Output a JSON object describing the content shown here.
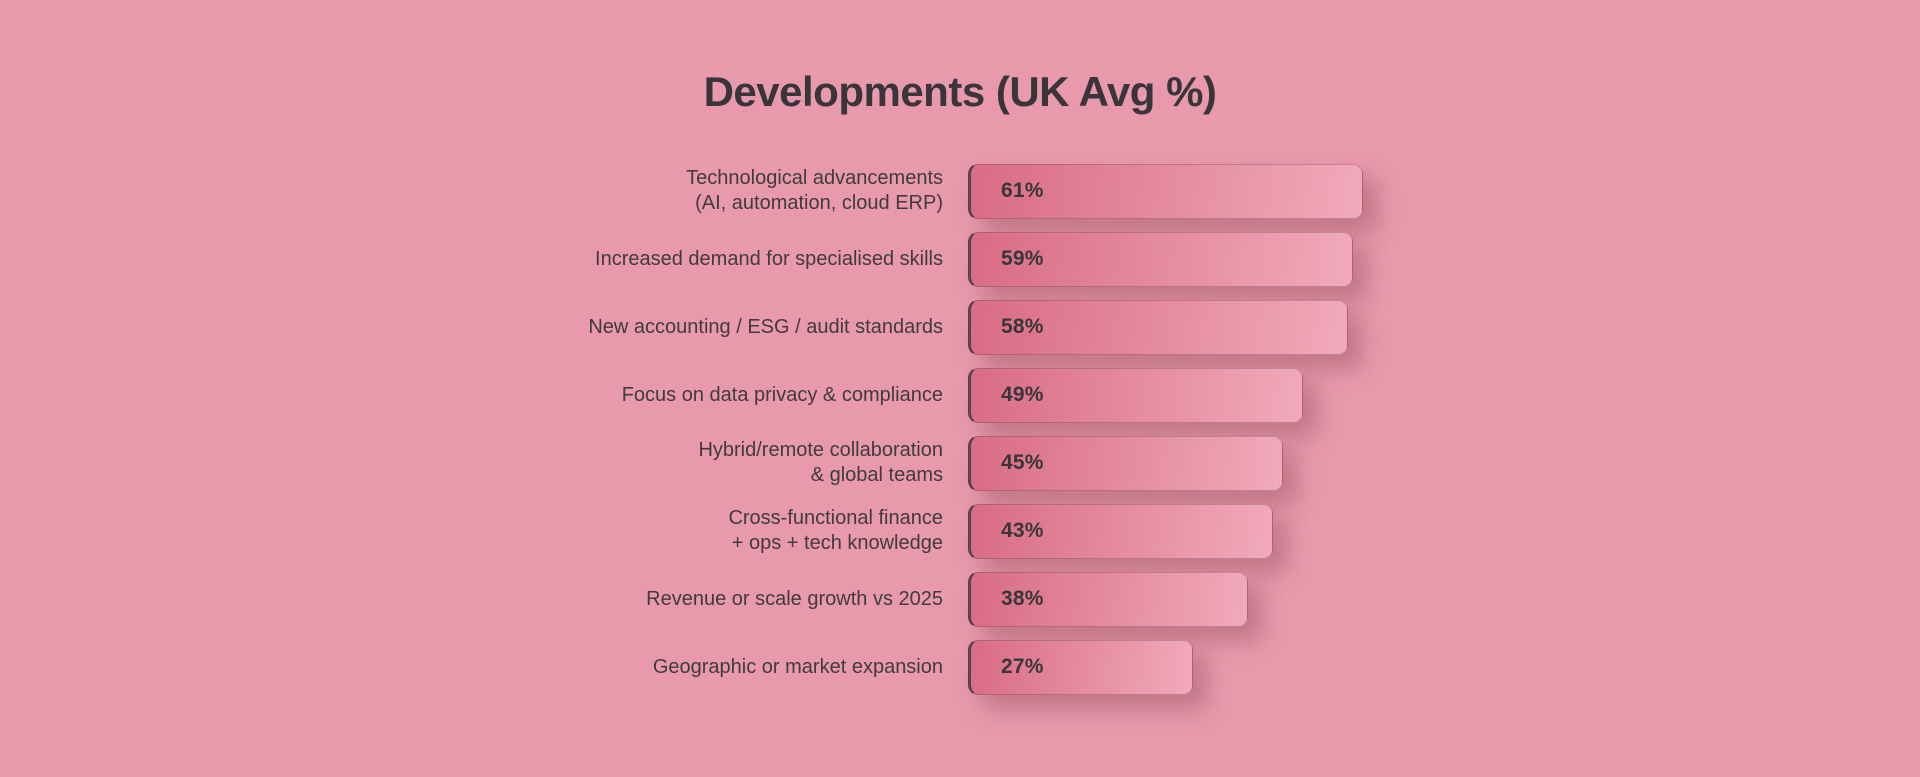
{
  "title": "Developments (UK Avg %)",
  "colors": {
    "background": "#E899AC",
    "bar_gradient_start": "#D96C84",
    "bar_gradient_end": "#F1AABB",
    "bar_edge": "#473740",
    "text": "#3A353B",
    "shadow": "rgba(146,77,94,0.45)"
  },
  "chart_data": {
    "type": "bar",
    "orientation": "horizontal",
    "title": "Developments (UK Avg %)",
    "value_unit": "%",
    "xlim": [
      0,
      100
    ],
    "grid": false,
    "legend": false,
    "categories": [
      "Technological advancements (AI, automation, cloud ERP)",
      "Increased demand for specialised skills",
      "New accounting / ESG / audit standards",
      "Focus on data privacy & compliance",
      "Hybrid/remote collaboration & global teams",
      "Cross-functional finance + ops + tech knowledge",
      "Revenue or scale growth vs 2025",
      "Geographic or market expansion"
    ],
    "values": [
      61,
      59,
      58,
      49,
      45,
      43,
      38,
      27
    ],
    "bars": [
      {
        "label_lines": [
          "Technological advancements",
          "(AI, automation, cloud ERP)"
        ],
        "value": 61,
        "display_value": "61%"
      },
      {
        "label_lines": [
          "Increased demand for specialised skills"
        ],
        "value": 59,
        "display_value": "59%"
      },
      {
        "label_lines": [
          "New accounting / ESG / audit standards"
        ],
        "value": 58,
        "display_value": "58%"
      },
      {
        "label_lines": [
          "Focus on data privacy & compliance"
        ],
        "value": 49,
        "display_value": "49%"
      },
      {
        "label_lines": [
          "Hybrid/remote collaboration",
          "& global teams"
        ],
        "value": 45,
        "display_value": "45%"
      },
      {
        "label_lines": [
          "Cross-functional finance",
          "+ ops + tech knowledge"
        ],
        "value": 43,
        "display_value": "43%"
      },
      {
        "label_lines": [
          "Revenue or scale growth vs 2025"
        ],
        "value": 38,
        "display_value": "38%"
      },
      {
        "label_lines": [
          "Geographic or market expansion"
        ],
        "value": 27,
        "display_value": "27%"
      }
    ]
  }
}
